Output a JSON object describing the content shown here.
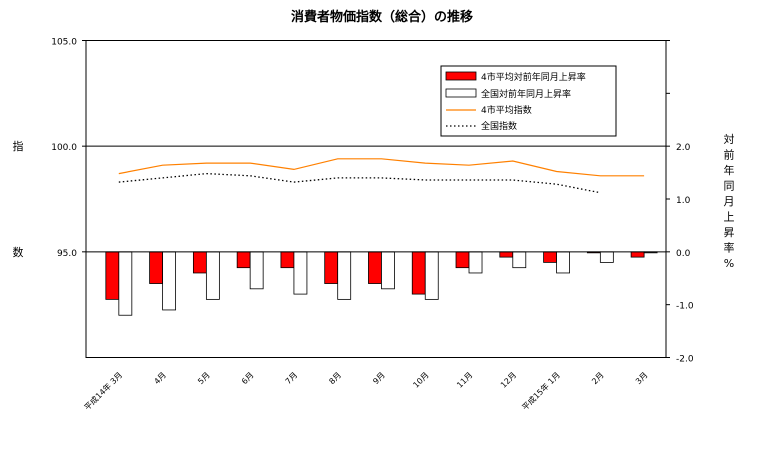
{
  "chart_data": {
    "type": "bar",
    "title": "消費者物価指数（総合）の推移",
    "left_axis_label": "指　数",
    "left_axis_label_chars": [
      "指",
      "数"
    ],
    "right_axis_label": "対前年同月上昇率 %",
    "right_axis_label_chars": [
      "対",
      "前",
      "年",
      "同",
      "月",
      "上",
      "昇",
      "率",
      "%"
    ],
    "left_ylim": [
      90.0,
      105.0
    ],
    "left_ticks": [
      105.0,
      100.0,
      95.0
    ],
    "left_tick_labels": [
      "105.0",
      "100.0",
      "95.0"
    ],
    "right_ylim": [
      -2.0,
      4.0
    ],
    "right_ticks": [
      2.0,
      1.0,
      0.0,
      -1.0,
      -2.0
    ],
    "right_tick_labels": [
      "2.0",
      "1.0",
      "0.0",
      "-1.0",
      "-2.0"
    ],
    "categories": [
      "平成14年 3月",
      "4月",
      "5月",
      "6月",
      "7月",
      "8月",
      "9月",
      "10月",
      "11月",
      "12月",
      "平成15年 1月",
      "2月",
      "3月"
    ],
    "bar_series": [
      {
        "name": "4市平均対前年同月上昇率",
        "color": "#ff0000",
        "values": [
          -0.9,
          -0.6,
          -0.4,
          -0.3,
          -0.3,
          -0.6,
          -0.6,
          -0.8,
          -0.3,
          -0.1,
          -0.2,
          0.0,
          -0.1
        ]
      },
      {
        "name": "全国対前年同月上昇率",
        "color": "#ffffff",
        "values": [
          -1.2,
          -1.1,
          -0.9,
          -0.7,
          -0.8,
          -0.9,
          -0.7,
          -0.9,
          -0.4,
          -0.3,
          -0.4,
          -0.2,
          0.0
        ]
      }
    ],
    "line_series": [
      {
        "name": "4市平均指数",
        "color": "#ff8000",
        "style": "solid",
        "values": [
          98.7,
          99.1,
          99.2,
          99.2,
          98.9,
          99.4,
          99.4,
          99.2,
          99.1,
          99.3,
          98.8,
          98.6,
          98.6
        ]
      },
      {
        "name": "全国指数",
        "color": "#000000",
        "style": "dotted",
        "values": [
          98.3,
          98.5,
          98.7,
          98.6,
          98.3,
          98.5,
          98.5,
          98.4,
          98.4,
          98.4,
          98.2,
          97.8,
          null
        ]
      }
    ],
    "reference_line": {
      "axis": "left",
      "value": 100.0
    },
    "legend_position": "top-right",
    "grid": false
  }
}
